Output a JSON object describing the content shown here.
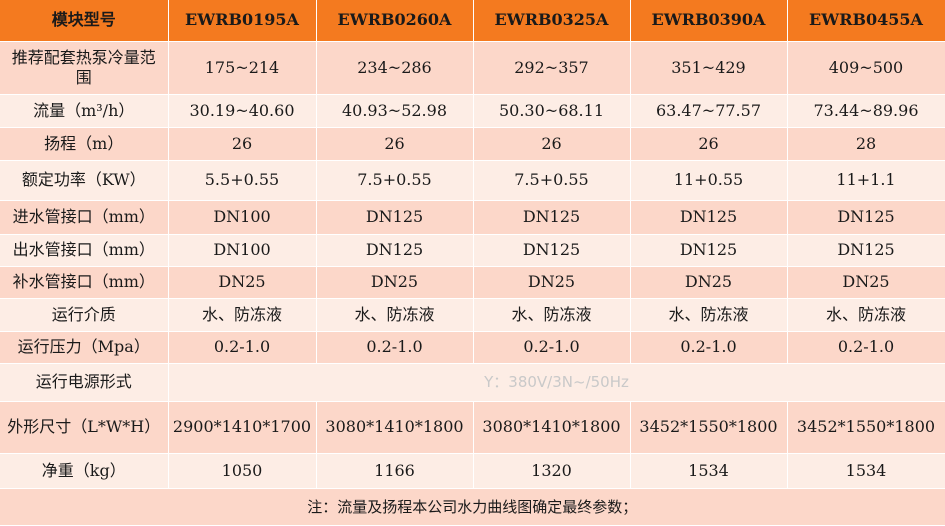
{
  "header": {
    "label": "模块型号",
    "models": [
      "EWRB0195A",
      "EWRB0260A",
      "EWRB0325A",
      "EWRB0390A",
      "EWRB0455A"
    ]
  },
  "rows": [
    {
      "label": "推荐配套热泵冷量范围",
      "values": [
        "175~214",
        "234~286",
        "292~357",
        "351~429",
        "409~500"
      ]
    },
    {
      "label": "流量（m³/h）",
      "values": [
        "30.19~40.60",
        "40.93~52.98",
        "50.30~68.11",
        "63.47~77.57",
        "73.44~89.96"
      ]
    },
    {
      "label": "扬程（m）",
      "values": [
        "26",
        "26",
        "26",
        "26",
        "28"
      ]
    },
    {
      "label": "额定功率（KW）",
      "values": [
        "5.5+0.55",
        "7.5+0.55",
        "7.5+0.55",
        "11+0.55",
        "11+1.1"
      ]
    },
    {
      "label": "进水管接口（mm）",
      "values": [
        "DN100",
        "DN125",
        "DN125",
        "DN125",
        "DN125"
      ]
    },
    {
      "label": "出水管接口（mm）",
      "values": [
        "DN100",
        "DN125",
        "DN125",
        "DN125",
        "DN125"
      ]
    },
    {
      "label": "补水管接口（mm）",
      "values": [
        "DN25",
        "DN25",
        "DN25",
        "DN25",
        "DN25"
      ]
    },
    {
      "label": "运行介质",
      "values": [
        "水、防冻液",
        "水、防冻液",
        "水、防冻液",
        "水、防冻液",
        "水、防冻液"
      ]
    },
    {
      "label": "运行压力（Mpa）",
      "values": [
        "0.2-1.0",
        "0.2-1.0",
        "0.2-1.0",
        "0.2-1.0",
        "0.2-1.0"
      ]
    }
  ],
  "power": {
    "label": "运行电源形式",
    "value": "Y：380V/3N~/50Hz"
  },
  "dims": {
    "label": "外形尺寸（L*W*H）",
    "values": [
      "2900*1410*1700",
      "3080*1410*1800",
      "3080*1410*1800",
      "3452*1550*1800",
      "3452*1550*1800"
    ]
  },
  "weight": {
    "label": "净重（kg）",
    "values": [
      "1050",
      "1166",
      "1320",
      "1534",
      "1534"
    ]
  },
  "footnote": "注：流量及扬程本公司水力曲线图确定最终参数；",
  "colors": {
    "header": "#f47a1f",
    "band_dark": "#fcd7c9",
    "band_light": "#fdede5"
  }
}
